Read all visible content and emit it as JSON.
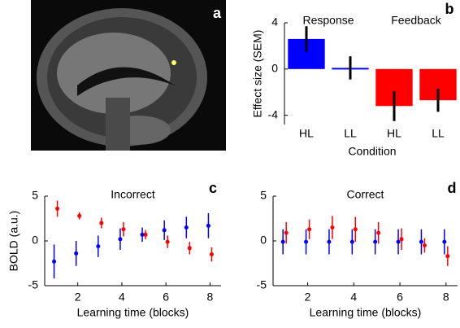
{
  "image": {
    "panel_label": "a"
  },
  "chart_data": [
    {
      "type": "bar",
      "panel_label": "b",
      "annotations": [
        "Response",
        "Feedback"
      ],
      "categories": [
        "HL",
        "LL",
        "HL",
        "LL"
      ],
      "values": [
        2.6,
        0.1,
        -3.2,
        -2.7
      ],
      "errors": [
        1.1,
        1.0,
        1.3,
        1.0
      ],
      "colors": [
        "#0000ff",
        "#0000ff",
        "#ff0000",
        "#ff0000"
      ],
      "ylim": [
        -4.8,
        4
      ],
      "yticks": [
        -4,
        0,
        4
      ],
      "y_label": "Effect size (SEM)",
      "x_label": "Condition"
    },
    {
      "type": "scatter",
      "panel_label": "c",
      "title": "Incorrect",
      "x": [
        1,
        2,
        3,
        4,
        5,
        6,
        7,
        8
      ],
      "series": [
        {
          "color": "#ff0000",
          "values": [
            3.6,
            2.8,
            2.0,
            1.3,
            0.7,
            -0.1,
            -0.8,
            -1.5
          ],
          "errors": [
            0.9,
            0.4,
            0.6,
            0.8,
            0.5,
            0.7,
            0.7,
            0.8
          ]
        },
        {
          "color": "#0000ff",
          "values": [
            -2.3,
            -1.4,
            -0.6,
            0.2,
            0.7,
            1.2,
            1.5,
            1.7
          ],
          "errors": [
            1.9,
            1.4,
            1.2,
            1.2,
            0.8,
            1.1,
            1.2,
            1.4
          ]
        }
      ],
      "xlim": [
        0.5,
        8.5
      ],
      "xticks": [
        2,
        4,
        6,
        8
      ],
      "ylim": [
        -5,
        5
      ],
      "yticks": [
        -5,
        0,
        5
      ],
      "y_label": "BOLD (a.u.)",
      "x_label": "Learning time (blocks)"
    },
    {
      "type": "scatter",
      "panel_label": "d",
      "title": "Correct",
      "x": [
        1,
        2,
        3,
        4,
        5,
        6,
        7,
        8
      ],
      "series": [
        {
          "color": "#ff0000",
          "values": [
            0.9,
            1.3,
            1.5,
            1.3,
            0.9,
            0.2,
            -0.5,
            -1.7
          ],
          "errors": [
            1.2,
            1.1,
            1.3,
            1.4,
            1.2,
            1.2,
            0.8,
            1.1
          ]
        },
        {
          "color": "#0000ff",
          "values": [
            -0.1,
            -0.1,
            -0.1,
            -0.1,
            -0.1,
            -0.1,
            -0.1,
            -0.1
          ],
          "errors": [
            1.4,
            1.4,
            1.4,
            1.4,
            1.4,
            1.4,
            1.4,
            1.4
          ]
        }
      ],
      "xlim": [
        0.5,
        8.5
      ],
      "xticks": [
        2,
        4,
        6,
        8
      ],
      "ylim": [
        -5,
        5
      ],
      "yticks": [
        -5,
        0,
        5
      ],
      "x_label": "Learning time (blocks)"
    }
  ]
}
